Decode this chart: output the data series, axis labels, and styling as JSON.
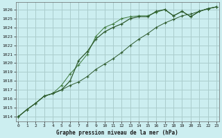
{
  "title": "Graphe pression niveau de la mer (hPa)",
  "bg_color": "#cceef0",
  "grid_color": "#aacccc",
  "line_color1": "#2d5a2d",
  "line_color2": "#2d5a2d",
  "line_color3": "#3d7a3d",
  "xlim": [
    -0.3,
    23.3
  ],
  "ylim": [
    1013.5,
    1026.8
  ],
  "yticks": [
    1014,
    1015,
    1016,
    1017,
    1018,
    1019,
    1020,
    1021,
    1022,
    1023,
    1024,
    1025,
    1026
  ],
  "xticks": [
    0,
    1,
    2,
    3,
    4,
    5,
    6,
    7,
    8,
    9,
    10,
    11,
    12,
    13,
    14,
    15,
    16,
    17,
    18,
    19,
    20,
    21,
    22,
    23
  ],
  "series1": [
    1014.0,
    1014.8,
    1015.5,
    1016.3,
    1016.6,
    1017.0,
    1018.0,
    1020.3,
    1021.3,
    1022.7,
    1023.5,
    1024.0,
    1024.4,
    1025.0,
    1025.2,
    1025.2,
    1025.8,
    1026.0,
    1025.3,
    1025.8,
    1025.2,
    1025.8,
    1026.1,
    1026.3
  ],
  "series2": [
    1014.0,
    1014.8,
    1015.5,
    1016.3,
    1016.6,
    1017.0,
    1017.5,
    1017.9,
    1018.5,
    1019.3,
    1019.9,
    1020.5,
    1021.2,
    1022.0,
    1022.7,
    1023.3,
    1024.0,
    1024.5,
    1024.9,
    1025.3,
    1025.5,
    1025.8,
    1026.1,
    1026.3
  ],
  "series3": [
    1014.0,
    1014.8,
    1015.5,
    1016.3,
    1016.6,
    1017.5,
    1018.8,
    1019.8,
    1021.0,
    1023.0,
    1024.0,
    1024.4,
    1025.0,
    1025.2,
    1025.3,
    1025.3,
    1025.7,
    1026.0,
    1025.3,
    1025.8,
    1025.2,
    1025.8,
    1026.1,
    1026.3
  ]
}
